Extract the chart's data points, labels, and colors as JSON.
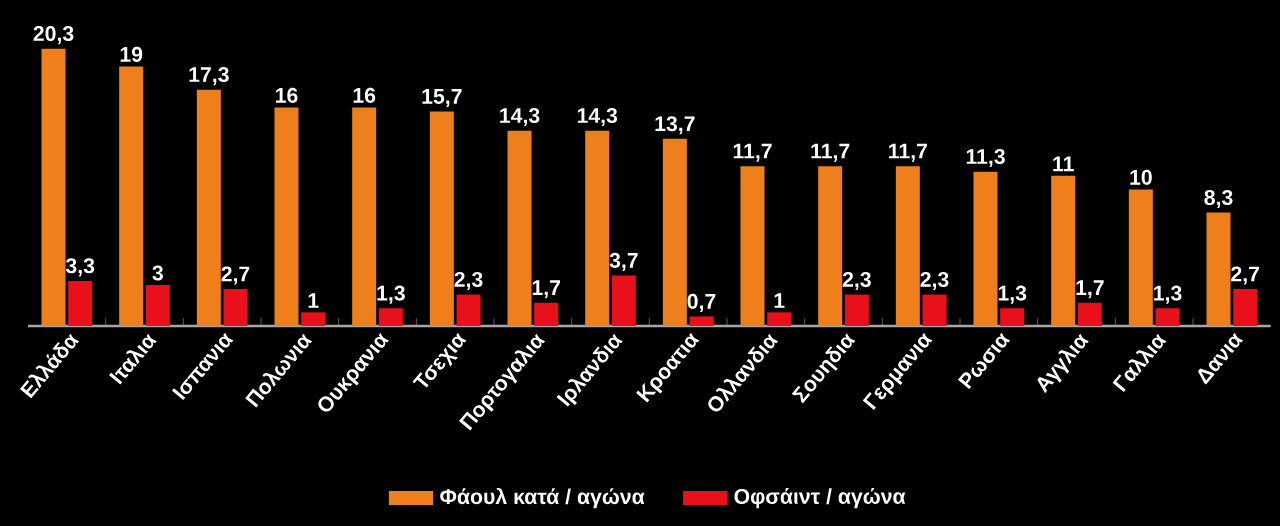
{
  "chart_data": {
    "type": "bar",
    "categories": [
      "Ελλάδα",
      "Ιταλια",
      "Ισπανια",
      "Πολωνια",
      "Ουκρανια",
      "Τσεχια",
      "Πορτογαλια",
      "Ιρλανδια",
      "Κροατια",
      "Ολλανδια",
      "Σουηδια",
      "Γερμανια",
      "Ρωσια",
      "Αγγλια",
      "Γαλλια",
      "Δανια"
    ],
    "series": [
      {
        "name": "Φάουλ κατά / αγώνα",
        "color": "#ee7f1a",
        "values": [
          20.3,
          19,
          17.3,
          16,
          16,
          15.7,
          14.3,
          14.3,
          13.7,
          11.7,
          11.7,
          11.7,
          11.3,
          11,
          10,
          8.3
        ],
        "value_labels": [
          "20,3",
          "19",
          "17,3",
          "16",
          "16",
          "15,7",
          "14,3",
          "14,3",
          "13,7",
          "11,7",
          "11,7",
          "11,7",
          "11,3",
          "11",
          "10",
          "8,3"
        ]
      },
      {
        "name": "Οφσάιντ / αγώνα",
        "color": "#e8101a",
        "values": [
          3.3,
          3,
          2.7,
          1,
          1.3,
          2.3,
          1.7,
          3.7,
          0.7,
          1,
          2.3,
          2.3,
          1.3,
          1.7,
          1.3,
          2.7
        ],
        "value_labels": [
          "3,3",
          "3",
          "2,7",
          "1",
          "1,3",
          "2,3",
          "1,7",
          "3,7",
          "0,7",
          "1",
          "2,3",
          "2,3",
          "1,3",
          "1,7",
          "1,3",
          "2,7"
        ]
      }
    ],
    "tick_labels": "x",
    "legend": "bottom"
  }
}
